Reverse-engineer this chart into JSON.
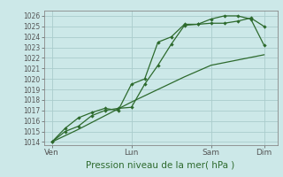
{
  "title": "Pression niveau de la mer( hPa )",
  "bg_color": "#cce8e8",
  "grid_color": "#aacccc",
  "line_color": "#2d6a2d",
  "yticks": [
    1014,
    1015,
    1016,
    1017,
    1018,
    1019,
    1020,
    1021,
    1022,
    1023,
    1024,
    1025,
    1026
  ],
  "ylim": [
    1013.7,
    1026.5
  ],
  "xtick_labels": [
    "Ven",
    "Lun",
    "Sam",
    "Dim"
  ],
  "xtick_positions": [
    0,
    3,
    6,
    8
  ],
  "xlim": [
    -0.3,
    8.5
  ],
  "line1_x": [
    0,
    0.5,
    1,
    1.5,
    2,
    2.5,
    3,
    3.5,
    4,
    4.5,
    5,
    5.5,
    6,
    6.5,
    7,
    7.5,
    8
  ],
  "line1_y": [
    1014.0,
    1015.0,
    1015.5,
    1016.5,
    1017.0,
    1017.2,
    1017.3,
    1019.5,
    1021.3,
    1023.3,
    1025.1,
    1025.2,
    1025.3,
    1025.3,
    1025.5,
    1025.8,
    1025.0
  ],
  "line2_x": [
    0,
    0.5,
    1,
    1.5,
    2,
    2.5,
    3,
    3.5,
    4,
    4.5,
    5,
    5.5,
    6,
    6.5,
    7,
    7.5,
    8
  ],
  "line2_y": [
    1014.0,
    1015.3,
    1016.3,
    1016.8,
    1017.2,
    1017.0,
    1019.5,
    1020.0,
    1023.5,
    1024.0,
    1025.2,
    1025.2,
    1025.7,
    1026.0,
    1026.0,
    1025.7,
    1023.2
  ],
  "line3_x": [
    0,
    1,
    2,
    3,
    4,
    5,
    6,
    7,
    8
  ],
  "line3_y": [
    1014.0,
    1015.2,
    1016.5,
    1017.8,
    1019.0,
    1020.2,
    1021.3,
    1021.8,
    1022.3
  ],
  "title_fontsize": 7.5,
  "ytick_fontsize": 5.5,
  "xtick_fontsize": 6.5
}
